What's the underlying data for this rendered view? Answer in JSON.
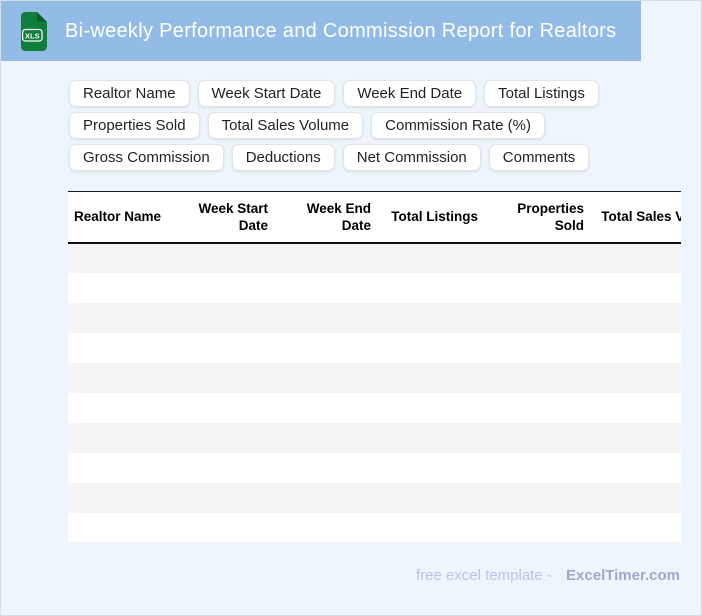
{
  "header": {
    "title": "Bi-weekly Performance and Commission Report for Realtors",
    "file_badge": "XLS"
  },
  "chips": [
    "Realtor Name",
    "Week Start Date",
    "Week End Date",
    "Total Listings",
    "Properties Sold",
    "Total Sales Volume",
    "Commission Rate (%)",
    "Gross Commission",
    "Deductions",
    "Net Commission",
    "Comments"
  ],
  "table": {
    "columns": [
      "Realtor Name",
      "Week Start Date",
      "Week End Date",
      "Total Listings",
      "Properties Sold",
      "Total Sales Volume"
    ],
    "row_count": 10
  },
  "footer": {
    "prefix": "free excel template -",
    "brand": "ExcelTimer.com"
  },
  "colors": {
    "appbar_bg": "#92bce6",
    "page_bg": "#eef5fc",
    "icon_green": "#0f7e3c",
    "icon_fold_green": "#0a5e2c",
    "row_stripe": "#f5f5f5",
    "header_text": "#ffffff",
    "footer_prefix": "#b8c4ea",
    "footer_brand": "#9ea9cb"
  }
}
